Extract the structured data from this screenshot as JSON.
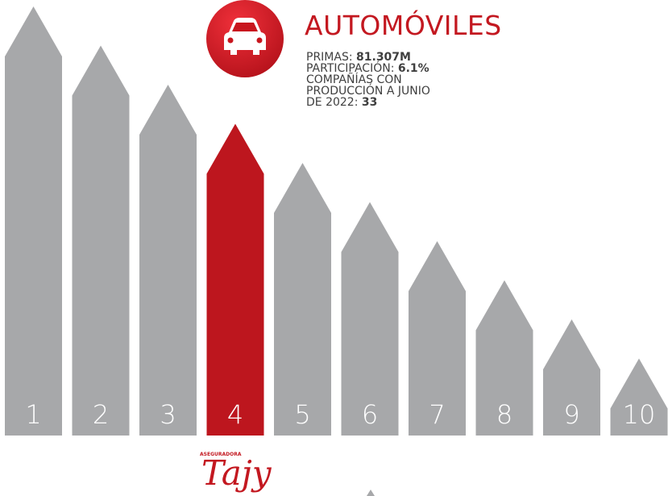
{
  "title": "AUTOMÓVILES",
  "stats": [
    {
      "label": "PRIMAS:",
      "value": "81.307M"
    },
    {
      "label": "PARTICIPACIÓN:",
      "value": "6.1%"
    },
    {
      "label": "COMPAÑÍAS CON PRODUCCIÓN A JUNIO DE 2022:",
      "value": "33"
    }
  ],
  "ranks": [
    "1",
    "2",
    "3",
    "4",
    "5",
    "6",
    "7",
    "8",
    "9",
    "10"
  ],
  "logo": {
    "tagline": "ASEGURADORA",
    "name": "Tajy"
  }
}
